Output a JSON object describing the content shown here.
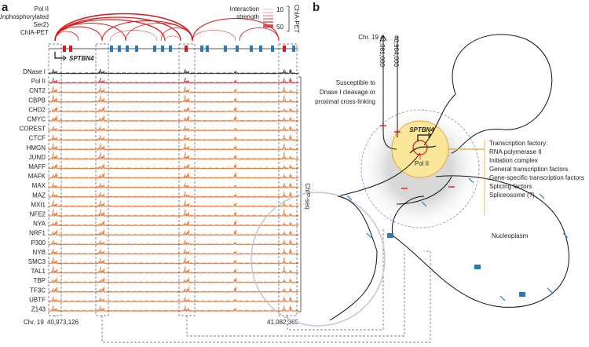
{
  "panel_a": {
    "label": "a",
    "chia_pet_label": [
      "Pol II",
      "(Unphosphorylated",
      "Ser2)",
      "ChIA-PET"
    ],
    "legend": {
      "title": [
        "Interaction",
        "strength"
      ],
      "ticks": [
        10,
        50
      ],
      "side_label": "ChIA-PET"
    },
    "gene": "SPTBN4",
    "tracks": [
      "DNase I",
      "Pol II",
      "CNT2",
      "CBPB",
      "CHD2",
      "CMYC",
      "COREST",
      "CTCF",
      "HMGN",
      "JUND",
      "MAFF",
      "MAFK",
      "MAX",
      "MAZ",
      "MXI1",
      "NFE2",
      "NYA",
      "NRF1",
      "P300",
      "NYB",
      "SMC3",
      "TAL1",
      "TBP",
      "TF3C",
      "UBTF",
      "Z143"
    ],
    "chip_label": "ChIP-seq",
    "chromosome": "Chr. 19",
    "start": "40,973,126",
    "end": "41,082,365"
  },
  "panel_b": {
    "label": "b",
    "chromosome": "Chr. 19",
    "coord_1": "41,081,000",
    "coord_2": "40,964,000",
    "note": [
      "Susceptible to",
      "Dnase I cleavage or",
      "proximal cross-linking"
    ],
    "gene": "SPTBN4",
    "pol": "Pol II",
    "factory": [
      "Transcription factory:",
      "RNA polymerase II",
      "Initiation complex",
      "General transcription factors",
      "Gene-specific transcription factors",
      "Splicing factors",
      "Spliceosome (?)"
    ],
    "nucleoplasm": "Nucleoplasm"
  }
}
